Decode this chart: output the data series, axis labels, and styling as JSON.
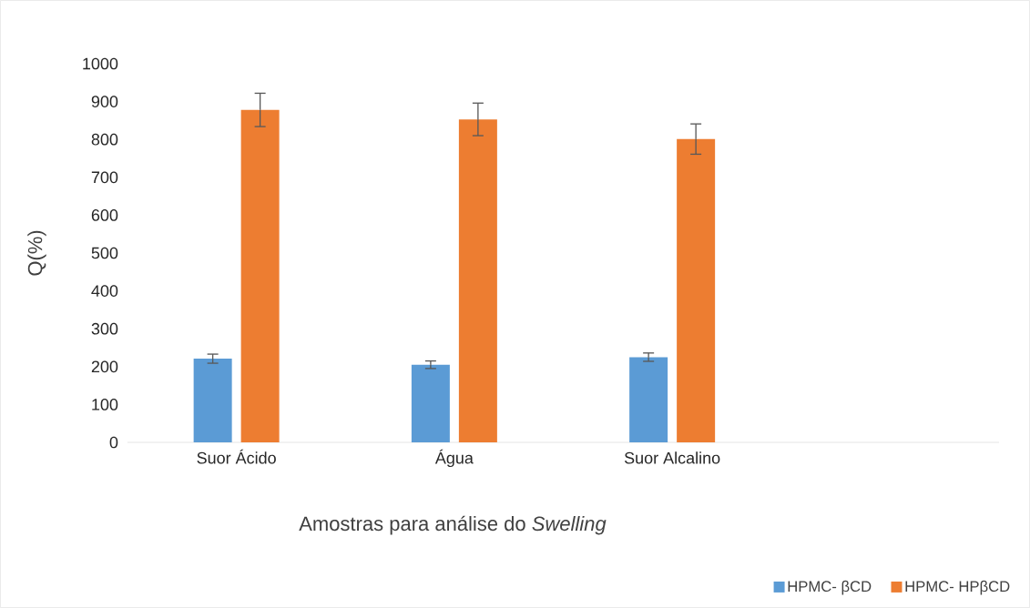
{
  "chart_data": {
    "type": "bar",
    "xlabel": "Amostras para análise do *Swelling*",
    "ylabel": "Q(%)",
    "categories": [
      "Suor Ácido",
      "Água",
      "Suor Alcalino",
      null
    ],
    "series": [
      {
        "name": "HPMC- βCD",
        "color": "#5b9bd5",
        "values": [
          221,
          205,
          225,
          null
        ],
        "errors": [
          12,
          10,
          11,
          null
        ]
      },
      {
        "name": "HPMC- HPβCD",
        "color": "#ed7d31",
        "values": [
          878,
          853,
          801,
          null
        ],
        "errors": [
          44,
          43,
          40,
          null
        ]
      }
    ],
    "ylim": [
      0,
      1000
    ],
    "yticks": [
      0,
      100,
      200,
      300,
      400,
      500,
      600,
      700,
      800,
      900,
      1000
    ],
    "grid": false,
    "legend": "bottom right"
  }
}
